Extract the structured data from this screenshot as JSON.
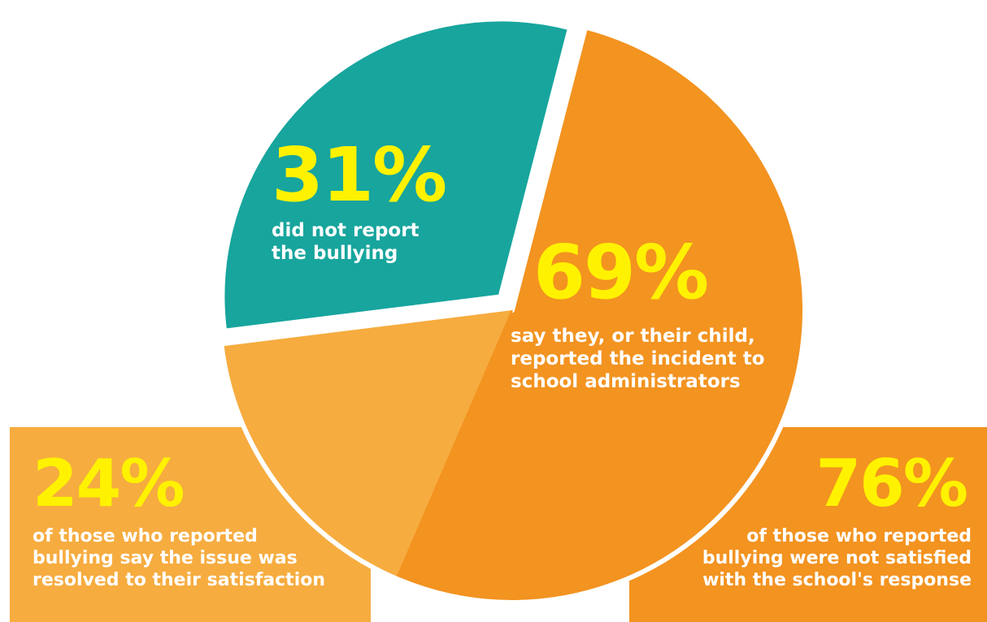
{
  "colors": {
    "teal": "#17a59d",
    "orange": "#f39320",
    "light_orange": "#f6ac3f",
    "yellow": "#fff200",
    "white": "#ffffff"
  },
  "chart_data": {
    "type": "pie",
    "slices": [
      {
        "label": "did not report the bullying",
        "value": 31,
        "color": "#17a59d"
      },
      {
        "label": "say they, or their child, reported the incident to school administrators",
        "value": 69,
        "color": "#f39320"
      }
    ],
    "sub_breakdown": {
      "of": "reported",
      "slices": [
        {
          "label": "of those who reported bullying say the issue was resolved to their satisfaction",
          "value": 24,
          "color": "#f6ac3f"
        },
        {
          "label": "of those who reported bullying were not satisfied with the school's response",
          "value": 76,
          "color": "#f39320"
        }
      ]
    }
  },
  "labels": {
    "did_not_report": {
      "percent": "31%",
      "lines": [
        "did not report",
        "the bullying"
      ]
    },
    "reported": {
      "percent": "69%",
      "lines": [
        "say they, or their child,",
        "reported the incident to",
        "school administrators"
      ]
    },
    "satisfied": {
      "percent": "24%",
      "lines": [
        "of those who reported",
        "bullying say the issue was",
        "resolved to their satisfaction"
      ]
    },
    "not_satisfied": {
      "percent": "76%",
      "lines": [
        "of those who reported",
        "bullying were not satisfied",
        "with the school's response"
      ]
    }
  }
}
